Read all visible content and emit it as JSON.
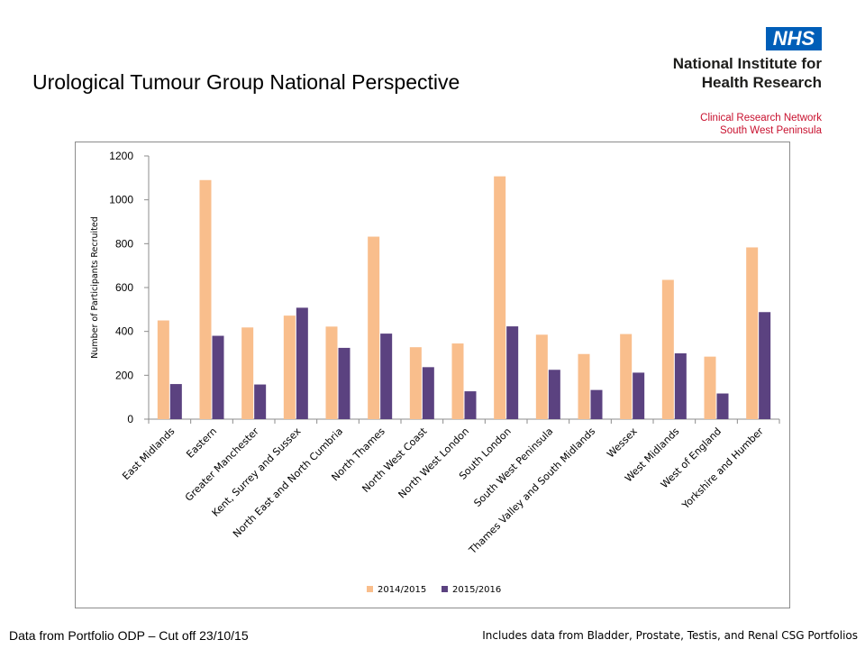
{
  "slide": {
    "title": "Urological Tumour Group National Perspective",
    "footer_left": "Data from Portfolio ODP – Cut off 23/10/15",
    "footer_right": "Includes data from Bladder, Prostate, Testis, and Renal CSG Portfolios"
  },
  "logo": {
    "badge": "NHS",
    "name_line1": "National Institute for",
    "name_line2": "Health Research",
    "network_line1": "Clinical Research Network",
    "network_line2": "South West Peninsula"
  },
  "colors": {
    "series_2014": "#f9be8c",
    "series_2015": "#5b4280",
    "nhs_blue": "#005eb8",
    "network_red": "#c8102e"
  },
  "chart_data": {
    "type": "bar",
    "title": "",
    "xlabel": "",
    "ylabel": "Number of Participants Recruited",
    "ylim": [
      0,
      1200
    ],
    "yticks": [
      0,
      200,
      400,
      600,
      800,
      1000,
      1200
    ],
    "grid": false,
    "legend_position": "bottom",
    "categories": [
      "East Midlands",
      "Eastern",
      "Greater Manchester",
      "Kent, Surrey and Sussex",
      "North East and North Cumbria",
      "North Thames",
      "North West Coast",
      "North West London",
      "South London",
      "South West Peninsula",
      "Thames Valley and South Midlands",
      "Wessex",
      "West Midlands",
      "West of England",
      "Yorkshire and Humber"
    ],
    "series": [
      {
        "name": "2014/2015",
        "values": [
          450,
          1090,
          418,
          472,
          422,
          832,
          328,
          345,
          1107,
          385,
          297,
          388,
          635,
          285,
          783
        ]
      },
      {
        "name": "2015/2016",
        "values": [
          160,
          380,
          158,
          508,
          325,
          390,
          237,
          127,
          423,
          225,
          133,
          212,
          300,
          117,
          488
        ]
      }
    ]
  }
}
